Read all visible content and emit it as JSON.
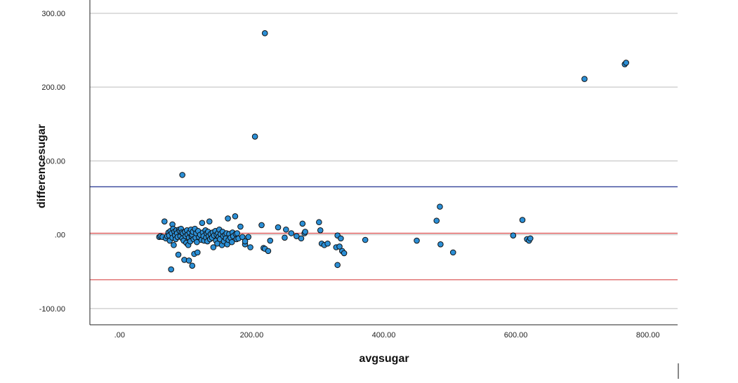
{
  "chart_data": {
    "type": "scatter",
    "xlabel": "avgsugar",
    "ylabel": "differencesugar",
    "xlim": [
      -45,
      845
    ],
    "ylim": [
      -122,
      318
    ],
    "x_ticks": [
      {
        "value": 0,
        "label": ".00"
      },
      {
        "value": 200,
        "label": "200.00"
      },
      {
        "value": 400,
        "label": "400.00"
      },
      {
        "value": 600,
        "label": "600.00"
      },
      {
        "value": 800,
        "label": "800.00"
      }
    ],
    "y_ticks": [
      {
        "value": -100,
        "label": "-100.00"
      },
      {
        "value": 0,
        "label": ".00"
      },
      {
        "value": 100,
        "label": "100.00"
      },
      {
        "value": 200,
        "label": "200.00"
      },
      {
        "value": 300,
        "label": "300.00"
      }
    ],
    "grid": "horizontal",
    "reference_lines": [
      {
        "value": 65,
        "color": "#1f2f8f"
      },
      {
        "value": 2,
        "color": "#d94a4a"
      },
      {
        "value": -61,
        "color": "#d94a4a"
      }
    ],
    "marker_color": "#2b8fd6",
    "points": [
      [
        60,
        -3
      ],
      [
        62,
        -2
      ],
      [
        65,
        -3
      ],
      [
        68,
        18
      ],
      [
        70,
        -5
      ],
      [
        72,
        -2
      ],
      [
        74,
        3
      ],
      [
        75,
        -1
      ],
      [
        76,
        -8
      ],
      [
        77,
        5
      ],
      [
        78,
        -47
      ],
      [
        79,
        2
      ],
      [
        80,
        14
      ],
      [
        80,
        -4
      ],
      [
        81,
        8
      ],
      [
        82,
        -14
      ],
      [
        83,
        4
      ],
      [
        84,
        -1
      ],
      [
        85,
        -6
      ],
      [
        86,
        6
      ],
      [
        87,
        2
      ],
      [
        88,
        -3
      ],
      [
        89,
        -27
      ],
      [
        90,
        7
      ],
      [
        91,
        5
      ],
      [
        92,
        -2
      ],
      [
        93,
        8
      ],
      [
        94,
        3
      ],
      [
        95,
        -5
      ],
      [
        95,
        81
      ],
      [
        96,
        2
      ],
      [
        97,
        -8
      ],
      [
        98,
        -34
      ],
      [
        99,
        4
      ],
      [
        100,
        -2
      ],
      [
        101,
        -11
      ],
      [
        102,
        6
      ],
      [
        103,
        0
      ],
      [
        104,
        -14
      ],
      [
        105,
        -4
      ],
      [
        105,
        -35
      ],
      [
        106,
        3
      ],
      [
        107,
        -9
      ],
      [
        108,
        7
      ],
      [
        109,
        -2
      ],
      [
        110,
        0
      ],
      [
        110,
        -42
      ],
      [
        111,
        4
      ],
      [
        112,
        -6
      ],
      [
        113,
        -26
      ],
      [
        114,
        8
      ],
      [
        115,
        -4
      ],
      [
        116,
        2
      ],
      [
        117,
        -10
      ],
      [
        118,
        -24
      ],
      [
        119,
        5
      ],
      [
        120,
        -3
      ],
      [
        122,
        0
      ],
      [
        124,
        -7
      ],
      [
        125,
        16
      ],
      [
        126,
        3
      ],
      [
        127,
        -2
      ],
      [
        128,
        -8
      ],
      [
        130,
        6
      ],
      [
        131,
        -4
      ],
      [
        132,
        2
      ],
      [
        133,
        -9
      ],
      [
        134,
        4
      ],
      [
        135,
        -2
      ],
      [
        136,
        18
      ],
      [
        137,
        -6
      ],
      [
        138,
        1
      ],
      [
        140,
        -4
      ],
      [
        141,
        3
      ],
      [
        142,
        -17
      ],
      [
        143,
        -1
      ],
      [
        145,
        5
      ],
      [
        146,
        -8
      ],
      [
        147,
        0
      ],
      [
        148,
        -12
      ],
      [
        149,
        2
      ],
      [
        150,
        -3
      ],
      [
        151,
        7
      ],
      [
        152,
        -6
      ],
      [
        153,
        1
      ],
      [
        155,
        -14
      ],
      [
        156,
        4
      ],
      [
        157,
        -2
      ],
      [
        158,
        -9
      ],
      [
        160,
        0
      ],
      [
        161,
        -5
      ],
      [
        162,
        2
      ],
      [
        163,
        -13
      ],
      [
        164,
        22
      ],
      [
        165,
        -7
      ],
      [
        166,
        1
      ],
      [
        168,
        -4
      ],
      [
        170,
        -10
      ],
      [
        171,
        3
      ],
      [
        172,
        -2
      ],
      [
        175,
        25
      ],
      [
        176,
        1
      ],
      [
        177,
        -6
      ],
      [
        178,
        2
      ],
      [
        180,
        -5
      ],
      [
        183,
        11
      ],
      [
        186,
        -3
      ],
      [
        190,
        -13
      ],
      [
        190,
        -9
      ],
      [
        195,
        -3
      ],
      [
        198,
        -17
      ],
      [
        205,
        133
      ],
      [
        215,
        13
      ],
      [
        218,
        -18
      ],
      [
        220,
        -19
      ],
      [
        220,
        273
      ],
      [
        225,
        -22
      ],
      [
        228,
        -8
      ],
      [
        240,
        10
      ],
      [
        250,
        -4
      ],
      [
        252,
        7
      ],
      [
        260,
        2
      ],
      [
        268,
        -2
      ],
      [
        275,
        -5
      ],
      [
        277,
        15
      ],
      [
        280,
        2
      ],
      [
        281,
        4
      ],
      [
        302,
        17
      ],
      [
        304,
        6
      ],
      [
        306,
        -12
      ],
      [
        310,
        -14
      ],
      [
        315,
        -12
      ],
      [
        328,
        -17
      ],
      [
        330,
        -1
      ],
      [
        330,
        -41
      ],
      [
        333,
        -16
      ],
      [
        335,
        -5
      ],
      [
        337,
        -22
      ],
      [
        340,
        -25
      ],
      [
        372,
        -7
      ],
      [
        450,
        -8
      ],
      [
        480,
        19
      ],
      [
        485,
        38
      ],
      [
        486,
        -13
      ],
      [
        505,
        -24
      ],
      [
        596,
        -1
      ],
      [
        610,
        20
      ],
      [
        617,
        -6
      ],
      [
        620,
        -8
      ],
      [
        622,
        -5
      ],
      [
        704,
        211
      ],
      [
        765,
        231
      ],
      [
        767,
        233
      ]
    ]
  }
}
